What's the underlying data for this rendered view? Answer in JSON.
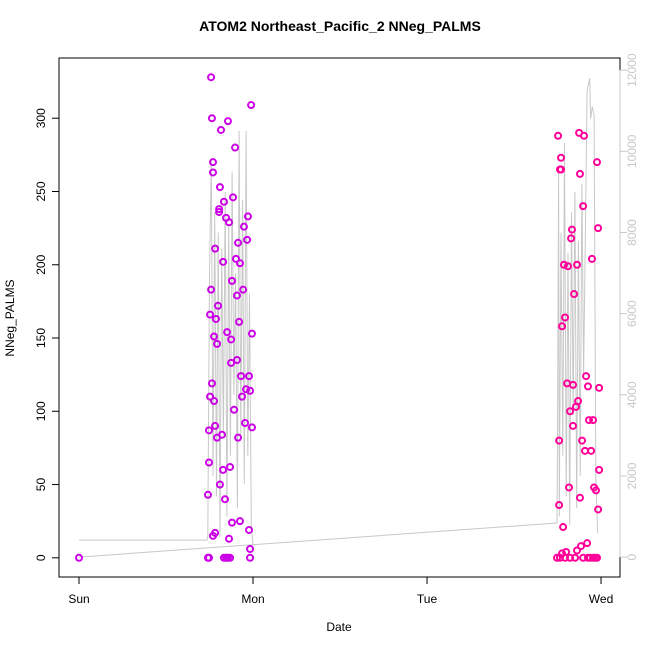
{
  "chart_data": {
    "type": "scatter",
    "title": "ATOM2 Northeast_Pacific_2 NNeg_PALMS",
    "x_label": "Date",
    "y_label": "NNeg_PALMS",
    "xlim": [
      -0.115,
      3.109
    ],
    "xticks": [
      {
        "value": 0,
        "label": "Sun"
      },
      {
        "value": 1,
        "label": "Mon"
      },
      {
        "value": 2,
        "label": "Tue"
      },
      {
        "value": 3,
        "label": "Wed"
      }
    ],
    "ylim": [
      -13.1,
      341.1
    ],
    "yticks": [
      0,
      50,
      100,
      150,
      200,
      250,
      300
    ],
    "y2lim": [
      -490,
      12300
    ],
    "y2ticks": [
      0,
      2000,
      4000,
      6000,
      8000,
      10000,
      12000
    ],
    "y2_color": "#c8c8c8",
    "series": [
      {
        "color": "#cc00e6",
        "x": [
          0,
          0.741,
          0.747,
          0.747,
          0.753,
          0.753,
          0.759,
          0.759,
          0.764,
          0.764,
          0.77,
          0.77,
          0.776,
          0.776,
          0.782,
          0.782,
          0.787,
          0.793,
          0.793,
          0.799,
          0.805,
          0.805,
          0.81,
          0.81,
          0.816,
          0.822,
          0.828,
          0.828,
          0.833,
          0.839,
          0.845,
          0.851,
          0.856,
          0.862,
          0.868,
          0.874,
          0.874,
          0.879,
          0.885,
          0.891,
          0.897,
          0.902,
          0.908,
          0.908,
          0.914,
          0.914,
          0.92,
          0.925,
          0.931,
          0.937,
          0.943,
          0.948,
          0.954,
          0.96,
          0.966,
          0.971,
          0.977,
          0.983,
          0.983,
          0.989,
          0.994,
          0.994,
          0.77,
          0.782,
          0.833,
          0.845,
          0.851,
          0.856,
          0.862,
          0.868,
          0.879,
          0.925,
          0.977,
          0.983,
          0.741,
          0.747
        ],
        "values": [
          0,
          43,
          65,
          87,
          110,
          166,
          183,
          328,
          300,
          119,
          270,
          263,
          151,
          107,
          211,
          90,
          163,
          146,
          82,
          172,
          236,
          238,
          253,
          50,
          292,
          84,
          60,
          202,
          243,
          40,
          232,
          154,
          298,
          229,
          62,
          149,
          133,
          189,
          246,
          101,
          280,
          204,
          179,
          135,
          215,
          82,
          161,
          201,
          124,
          110,
          183,
          226,
          92,
          115,
          217,
          233,
          124,
          114,
          0,
          309,
          153,
          89,
          15,
          17,
          0,
          0,
          0,
          0,
          13,
          0,
          24,
          25,
          19,
          6,
          0,
          0
        ]
      },
      {
        "color": "#ff0099",
        "x": [
          2.747,
          2.753,
          2.759,
          2.759,
          2.764,
          2.77,
          2.77,
          2.776,
          2.782,
          2.787,
          2.793,
          2.799,
          2.805,
          2.81,
          2.816,
          2.822,
          2.828,
          2.833,
          2.839,
          2.839,
          2.845,
          2.851,
          2.856,
          2.862,
          2.868,
          2.874,
          2.879,
          2.879,
          2.885,
          2.891,
          2.897,
          2.902,
          2.908,
          2.914,
          2.92,
          2.925,
          2.931,
          2.937,
          2.943,
          2.948,
          2.954,
          2.96,
          2.966,
          2.971,
          2.977,
          2.983,
          2.989,
          2.989,
          2.983,
          2.764,
          2.776,
          2.793,
          2.822,
          2.862,
          2.897,
          2.925,
          2.954,
          2.977
        ],
        "values": [
          0,
          288,
          36,
          80,
          265,
          273,
          265,
          158,
          21,
          200,
          164,
          4,
          119,
          199,
          48,
          100,
          218,
          224,
          118,
          90,
          180,
          0,
          103,
          200,
          107,
          290,
          41,
          262,
          8,
          80,
          240,
          288,
          73,
          124,
          10,
          117,
          94,
          0,
          73,
          204,
          94,
          48,
          0,
          46,
          270,
          225,
          60,
          116,
          33,
          0,
          3,
          0,
          0,
          5,
          0,
          0,
          0,
          0
        ]
      },
      {
        "axis": "y2",
        "color": "#c8c8c8",
        "x": [
          0,
          0.735,
          0.74,
          0.75,
          0.76,
          0.77,
          0.78,
          0.79,
          0.8,
          0.81,
          0.82,
          0.83,
          0.84,
          0.85,
          0.86,
          0.87,
          0.88,
          0.89,
          0.9,
          0.91,
          0.92,
          0.93,
          0.94,
          0.95,
          0.96,
          0.97,
          0.98,
          0.99,
          1.0,
          null,
          0,
          2.747,
          2.75,
          2.756,
          2.76,
          2.77,
          2.78,
          2.79,
          2.8,
          2.81,
          2.82,
          2.83,
          2.84,
          2.85,
          2.86,
          2.87,
          2.88,
          2.89,
          2.9,
          2.91,
          2.92,
          2.93,
          2.935,
          2.94,
          2.95,
          2.96,
          2.97,
          2.98
        ],
        "values": [
          420,
          420,
          500,
          7000,
          9800,
          2000,
          8500,
          1500,
          8000,
          500,
          7600,
          3000,
          9000,
          1000,
          8200,
          2500,
          9500,
          4000,
          7000,
          1200,
          10500,
          3000,
          8800,
          1800,
          10500,
          2500,
          6500,
          800,
          300,
          null,
          0,
          840,
          3000,
          9500,
          1000,
          8000,
          2500,
          10200,
          1500,
          7500,
          800,
          8500,
          3500,
          9000,
          1200,
          7800,
          2000,
          9200,
          4500,
          8000,
          11500,
          11700,
          11800,
          10800,
          11100,
          10900,
          2000,
          600
        ]
      }
    ]
  }
}
